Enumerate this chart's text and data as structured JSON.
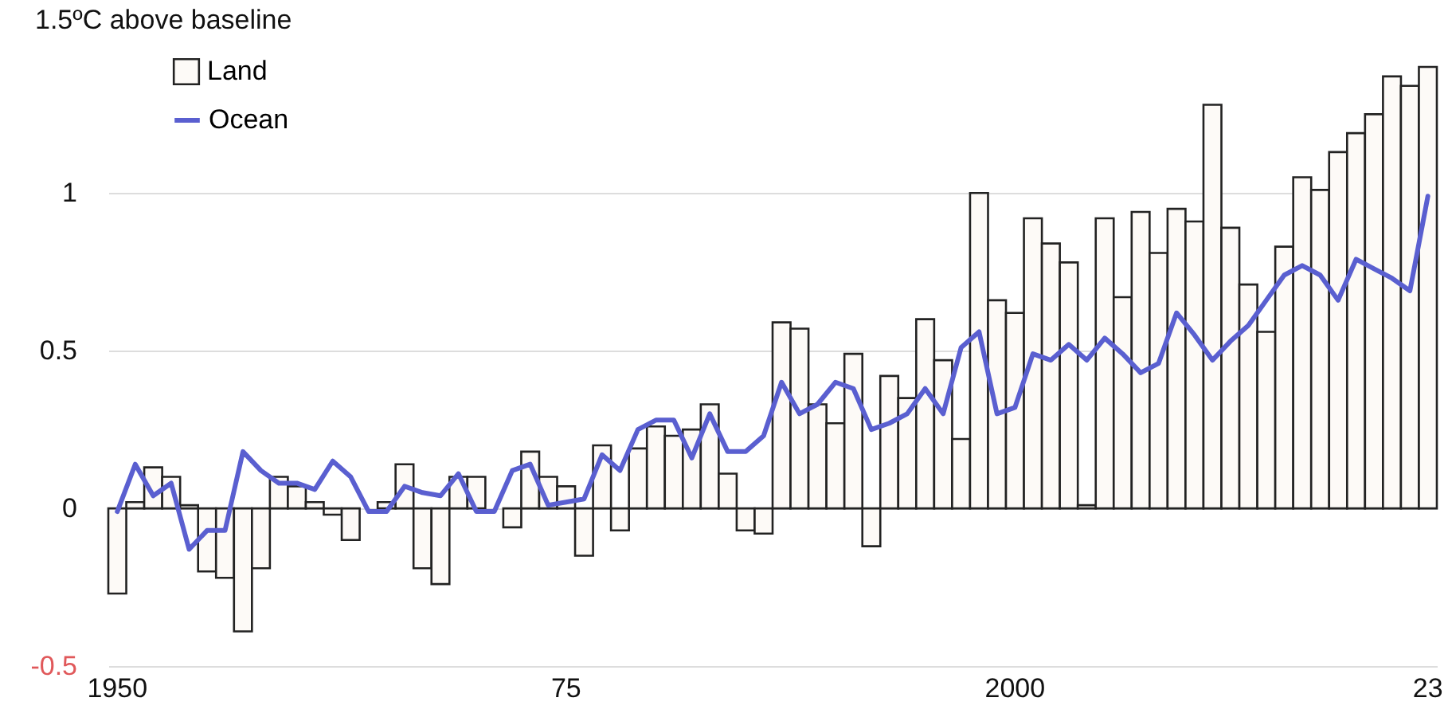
{
  "chart_data": {
    "type": "bar",
    "title": "1.5ºC above baseline",
    "categories": [
      "1950",
      null,
      null,
      null,
      null,
      null,
      null,
      null,
      null,
      null,
      null,
      null,
      null,
      null,
      null,
      null,
      null,
      null,
      null,
      null,
      null,
      null,
      null,
      null,
      null,
      "75",
      null,
      null,
      null,
      null,
      null,
      null,
      null,
      null,
      null,
      null,
      null,
      null,
      null,
      null,
      null,
      null,
      null,
      null,
      null,
      null,
      null,
      null,
      null,
      null,
      "2000",
      null,
      null,
      null,
      null,
      null,
      null,
      null,
      null,
      null,
      null,
      null,
      null,
      null,
      null,
      null,
      null,
      null,
      null,
      null,
      null,
      null,
      null,
      "23"
    ],
    "series": [
      {
        "name": "Land",
        "color": "#fdfaf7",
        "values": [
          -0.27,
          0.02,
          0.13,
          0.1,
          0.01,
          -0.2,
          -0.22,
          -0.39,
          -0.19,
          0.1,
          0.07,
          0.02,
          -0.02,
          -0.1,
          null,
          0.02,
          0.14,
          -0.19,
          -0.24,
          0.1,
          0.1,
          null,
          -0.06,
          0.18,
          0.1,
          0.07,
          -0.15,
          0.2,
          -0.07,
          0.19,
          0.26,
          0.23,
          0.25,
          0.33,
          0.11,
          -0.07,
          -0.08,
          0.59,
          0.57,
          0.33,
          0.27,
          0.49,
          -0.12,
          0.42,
          0.35,
          0.6,
          0.47,
          0.22,
          1.0,
          0.66,
          0.62,
          0.92,
          0.84,
          0.78,
          0.01,
          0.92,
          0.67,
          0.94,
          0.81,
          0.95,
          0.91,
          1.28,
          0.89,
          0.71,
          0.56,
          0.83,
          1.05,
          1.01,
          1.13,
          1.19,
          1.25,
          1.37,
          1.34,
          1.4
        ]
      },
      {
        "name": "Ocean",
        "type": "line",
        "color": "#5a5fd0",
        "values": [
          -0.01,
          0.14,
          0.04,
          0.08,
          -0.13,
          -0.07,
          -0.07,
          0.18,
          0.12,
          0.08,
          0.08,
          0.06,
          0.15,
          0.1,
          -0.01,
          -0.01,
          0.07,
          0.05,
          0.04,
          0.11,
          -0.01,
          -0.01,
          0.12,
          0.14,
          0.01,
          0.02,
          0.03,
          0.17,
          0.12,
          0.25,
          0.28,
          0.28,
          0.16,
          0.3,
          0.18,
          0.18,
          0.23,
          0.4,
          0.3,
          0.33,
          0.4,
          0.38,
          0.25,
          0.27,
          0.3,
          0.38,
          0.3,
          0.51,
          0.56,
          0.3,
          0.32,
          0.49,
          0.47,
          0.52,
          0.47,
          0.54,
          0.49,
          0.43,
          0.46,
          0.62,
          0.55,
          0.47,
          0.53,
          0.58,
          0.66,
          0.74,
          0.77,
          0.74,
          0.66,
          0.79,
          0.76,
          0.73,
          0.69,
          0.99
        ]
      }
    ],
    "ylim": [
      -0.5,
      1.4
    ],
    "yticks": [
      -0.5,
      0,
      0.5,
      1
    ],
    "grid": "y",
    "legend": "top left",
    "marker": "none",
    "line_style": "solid"
  }
}
